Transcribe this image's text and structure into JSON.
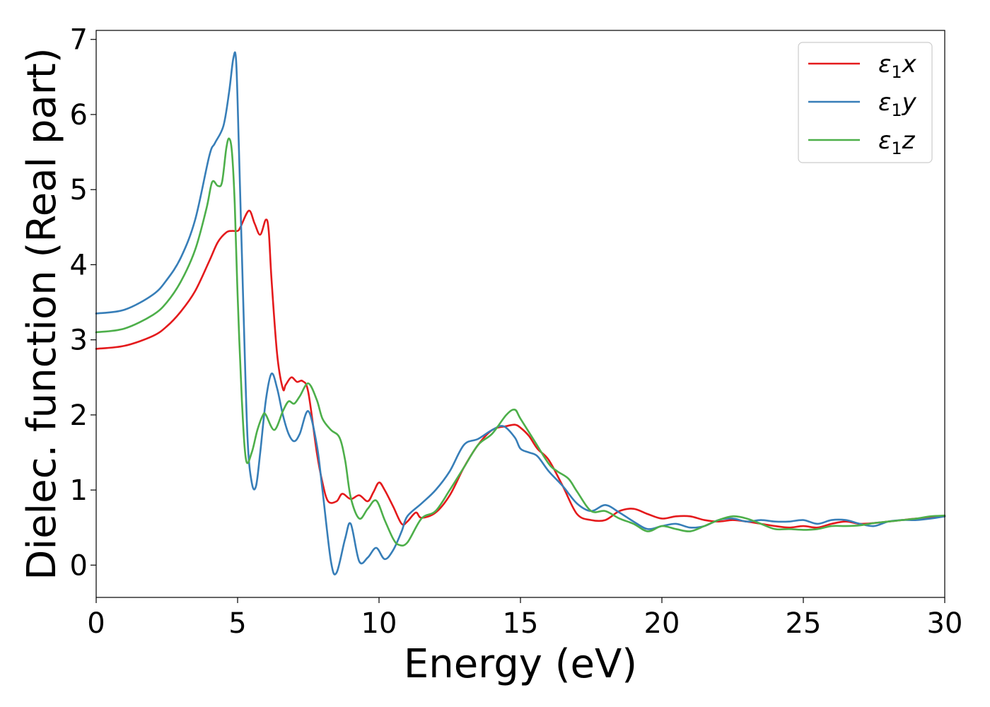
{
  "chart_data": {
    "type": "line",
    "xlabel": "Energy (eV)",
    "ylabel": "Dielec. function (Real part)",
    "xlim": [
      0,
      30
    ],
    "ylim": [
      -0.43,
      7.12
    ],
    "xticks": [
      0,
      5,
      10,
      15,
      20,
      25,
      30
    ],
    "yticks": [
      0,
      1,
      2,
      3,
      4,
      5,
      6,
      7
    ],
    "grid": false,
    "legend_position": "top-right",
    "series": [
      {
        "name": "ε1x",
        "legend_base": "ε",
        "legend_sub": "1",
        "legend_suffix": "x",
        "color": "#e41a1c",
        "x": [
          0,
          1,
          2,
          2.5,
          3,
          3.5,
          4,
          4.3,
          4.6,
          4.8,
          5.0,
          5.1,
          5.4,
          5.6,
          5.8,
          6.0,
          6.1,
          6.2,
          6.4,
          6.6,
          6.7,
          6.9,
          7.1,
          7.3,
          7.5,
          7.8,
          8.0,
          8.2,
          8.5,
          8.7,
          9.0,
          9.3,
          9.6,
          9.8,
          10.0,
          10.2,
          10.5,
          10.8,
          11.0,
          11.3,
          11.5,
          12.0,
          12.5,
          13.0,
          13.5,
          14.0,
          14.5,
          14.8,
          15.0,
          15.3,
          15.6,
          16.0,
          16.5,
          17.0,
          17.5,
          18.0,
          18.5,
          19.0,
          19.5,
          20.0,
          20.5,
          21.0,
          21.5,
          22.0,
          22.5,
          23.0,
          23.5,
          24.0,
          24.5,
          25.0,
          25.5,
          26.0,
          26.5,
          27.0,
          27.5,
          28.0,
          28.5,
          29.0,
          29.5,
          30.0
        ],
        "y": [
          2.88,
          2.92,
          3.05,
          3.18,
          3.38,
          3.65,
          4.05,
          4.3,
          4.43,
          4.45,
          4.45,
          4.5,
          4.72,
          4.55,
          4.4,
          4.6,
          4.45,
          3.8,
          2.8,
          2.35,
          2.4,
          2.5,
          2.44,
          2.45,
          2.3,
          1.5,
          1.1,
          0.85,
          0.85,
          0.95,
          0.88,
          0.93,
          0.85,
          0.97,
          1.1,
          1.0,
          0.78,
          0.55,
          0.58,
          0.7,
          0.63,
          0.7,
          0.93,
          1.3,
          1.6,
          1.8,
          1.85,
          1.87,
          1.83,
          1.72,
          1.55,
          1.4,
          1.05,
          0.68,
          0.6,
          0.6,
          0.72,
          0.75,
          0.68,
          0.62,
          0.65,
          0.65,
          0.6,
          0.58,
          0.6,
          0.58,
          0.55,
          0.52,
          0.5,
          0.52,
          0.5,
          0.55,
          0.58,
          0.55,
          0.56,
          0.58,
          0.6,
          0.62,
          0.63,
          0.65
        ]
      },
      {
        "name": "ε1y",
        "legend_base": "ε",
        "legend_sub": "1",
        "legend_suffix": "y",
        "color": "#377eb8",
        "x": [
          0,
          1,
          2,
          2.5,
          3,
          3.5,
          4,
          4.2,
          4.5,
          4.7,
          4.85,
          4.95,
          5.05,
          5.2,
          5.35,
          5.5,
          5.65,
          5.8,
          6.0,
          6.2,
          6.4,
          6.6,
          6.8,
          7.0,
          7.2,
          7.5,
          7.8,
          8.0,
          8.3,
          8.5,
          8.8,
          9.0,
          9.3,
          9.6,
          9.9,
          10.2,
          10.5,
          10.8,
          11.0,
          11.5,
          12.0,
          12.5,
          13.0,
          13.5,
          14.0,
          14.4,
          14.8,
          15.0,
          15.3,
          15.6,
          16.0,
          16.5,
          17.0,
          17.5,
          18.0,
          18.5,
          19.0,
          19.5,
          20.0,
          20.5,
          21.0,
          21.5,
          22.0,
          22.5,
          23.0,
          23.5,
          24.0,
          24.5,
          25.0,
          25.5,
          26.0,
          26.5,
          27.0,
          27.5,
          28.0,
          28.5,
          29.0,
          29.5,
          30.0
        ],
        "y": [
          3.35,
          3.4,
          3.6,
          3.8,
          4.1,
          4.6,
          5.45,
          5.62,
          5.85,
          6.3,
          6.75,
          6.7,
          5.5,
          3.5,
          1.7,
          1.1,
          1.05,
          1.5,
          2.2,
          2.55,
          2.35,
          2.0,
          1.75,
          1.65,
          1.75,
          2.05,
          1.6,
          1.0,
          0.05,
          -0.1,
          0.35,
          0.55,
          0.05,
          0.1,
          0.23,
          0.08,
          0.2,
          0.45,
          0.65,
          0.82,
          1.0,
          1.25,
          1.6,
          1.68,
          1.8,
          1.85,
          1.7,
          1.55,
          1.5,
          1.45,
          1.25,
          1.05,
          0.82,
          0.72,
          0.8,
          0.7,
          0.58,
          0.48,
          0.52,
          0.55,
          0.5,
          0.52,
          0.6,
          0.62,
          0.58,
          0.6,
          0.58,
          0.58,
          0.6,
          0.55,
          0.6,
          0.6,
          0.55,
          0.52,
          0.58,
          0.6,
          0.6,
          0.62,
          0.65
        ]
      },
      {
        "name": "ε1z",
        "legend_base": "ε",
        "legend_sub": "1",
        "legend_suffix": "z",
        "color": "#4daf4a",
        "x": [
          0,
          1,
          2,
          2.5,
          3,
          3.5,
          3.9,
          4.1,
          4.3,
          4.45,
          4.6,
          4.7,
          4.8,
          4.9,
          5.0,
          5.15,
          5.3,
          5.5,
          5.7,
          5.9,
          6.0,
          6.3,
          6.6,
          6.8,
          7.0,
          7.2,
          7.5,
          7.8,
          8.0,
          8.3,
          8.6,
          8.8,
          9.0,
          9.3,
          9.6,
          9.9,
          10.2,
          10.5,
          10.7,
          11.0,
          11.5,
          12.0,
          12.5,
          13.0,
          13.5,
          14.0,
          14.5,
          14.8,
          15.0,
          15.5,
          16.0,
          16.3,
          16.7,
          17.0,
          17.5,
          18.0,
          18.5,
          19.0,
          19.5,
          20.0,
          20.5,
          21.0,
          21.5,
          22.0,
          22.5,
          23.0,
          23.5,
          24.0,
          24.5,
          25.0,
          25.5,
          26.0,
          26.5,
          27.0,
          27.5,
          28.0,
          28.5,
          29.0,
          29.5,
          30.0
        ],
        "y": [
          3.1,
          3.15,
          3.33,
          3.5,
          3.78,
          4.2,
          4.75,
          5.1,
          5.05,
          5.1,
          5.55,
          5.68,
          5.5,
          4.8,
          3.6,
          2.2,
          1.4,
          1.5,
          1.8,
          2.0,
          2.0,
          1.8,
          2.05,
          2.18,
          2.15,
          2.25,
          2.42,
          2.2,
          1.95,
          1.8,
          1.7,
          1.4,
          0.9,
          0.62,
          0.75,
          0.86,
          0.6,
          0.35,
          0.27,
          0.3,
          0.62,
          0.72,
          1.0,
          1.3,
          1.6,
          1.75,
          2.0,
          2.07,
          1.95,
          1.65,
          1.35,
          1.25,
          1.15,
          0.98,
          0.72,
          0.72,
          0.62,
          0.55,
          0.45,
          0.52,
          0.48,
          0.45,
          0.52,
          0.6,
          0.65,
          0.62,
          0.55,
          0.48,
          0.48,
          0.47,
          0.48,
          0.52,
          0.52,
          0.53,
          0.56,
          0.58,
          0.6,
          0.62,
          0.65,
          0.66
        ]
      }
    ]
  }
}
